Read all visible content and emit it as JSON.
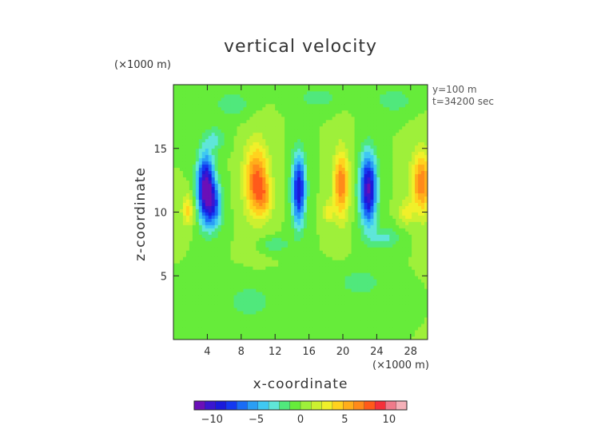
{
  "chart_data": {
    "type": "heatmap",
    "title": "vertical velocity",
    "xlabel": "x-coordinate",
    "ylabel": "z-coordinate",
    "x_unit": "(×1000 m)",
    "y_unit": "(×1000 m)",
    "annotations": [
      "y=100 m",
      "t=34200 sec"
    ],
    "xlim": [
      0,
      30
    ],
    "ylim": [
      0,
      20
    ],
    "x_ticks": [
      4,
      8,
      12,
      16,
      20,
      24,
      28
    ],
    "x_tick_labels": [
      "4",
      "8",
      "12",
      "16",
      "20",
      "24",
      "28"
    ],
    "y_ticks": [
      5,
      10,
      15
    ],
    "y_tick_labels": [
      "5",
      "10",
      "15"
    ],
    "colorbar": {
      "min": -12,
      "max": 12,
      "ticks": [
        -10,
        -5,
        0,
        5,
        10
      ],
      "tick_labels": [
        "−10",
        "−5",
        "0",
        "5",
        "10"
      ],
      "colors": [
        "#6a0fb8",
        "#3a16d0",
        "#1a1adc",
        "#1438f0",
        "#1a6cf5",
        "#2a9ef5",
        "#3fc9f2",
        "#5fe6d9",
        "#50e87c",
        "#66ec3a",
        "#9ef03a",
        "#ccf030",
        "#f0f02a",
        "#ffd21e",
        "#ffae1a",
        "#ff8a1a",
        "#ff5a1a",
        "#f5303a",
        "#f07a8a",
        "#f5b0b8"
      ]
    },
    "cells": [
      {
        "x": 3.8,
        "z": 12.0,
        "sx": 1.0,
        "sz": 2.6,
        "v": -11.5
      },
      {
        "x": 4.8,
        "z": 10.5,
        "sx": 1.0,
        "sz": 1.8,
        "v": -6.0
      },
      {
        "x": 1.7,
        "z": 10.2,
        "sx": 0.7,
        "sz": 1.2,
        "v": 4.0
      },
      {
        "x": 9.8,
        "z": 12.5,
        "sx": 1.4,
        "sz": 2.8,
        "v": 7.5
      },
      {
        "x": 10.8,
        "z": 11.2,
        "sx": 1.0,
        "sz": 1.4,
        "v": 3.0
      },
      {
        "x": 14.8,
        "z": 11.8,
        "sx": 0.8,
        "sz": 2.8,
        "v": -9.5
      },
      {
        "x": 19.8,
        "z": 12.2,
        "sx": 0.9,
        "sz": 2.6,
        "v": 7.0
      },
      {
        "x": 18.3,
        "z": 10.0,
        "sx": 0.6,
        "sz": 0.8,
        "v": 3.5
      },
      {
        "x": 23.0,
        "z": 11.8,
        "sx": 1.0,
        "sz": 2.8,
        "v": -11.0
      },
      {
        "x": 29.3,
        "z": 12.3,
        "sx": 1.2,
        "sz": 2.4,
        "v": 7.0
      },
      {
        "x": 27.5,
        "z": 10.0,
        "sx": 0.8,
        "sz": 0.9,
        "v": 3.0
      },
      {
        "x": 12.0,
        "z": 7.5,
        "sx": 1.6,
        "sz": 0.5,
        "v": -2.5
      },
      {
        "x": 7.0,
        "z": 18.5,
        "sx": 2.0,
        "sz": 1.0,
        "v": -2.3
      },
      {
        "x": 17.0,
        "z": 19.0,
        "sx": 2.2,
        "sz": 0.8,
        "v": -2.2
      },
      {
        "x": 26.0,
        "z": 18.8,
        "sx": 2.0,
        "sz": 0.9,
        "v": -2.3
      },
      {
        "x": 22.0,
        "z": 4.5,
        "sx": 2.4,
        "sz": 1.0,
        "v": -2.2
      },
      {
        "x": 9.0,
        "z": 3.0,
        "sx": 2.4,
        "sz": 1.2,
        "v": -2.2
      },
      {
        "x": 5.0,
        "z": 15.8,
        "sx": 1.2,
        "sz": 0.9,
        "v": -2.5
      },
      {
        "x": 25.0,
        "z": 8.0,
        "sx": 1.8,
        "sz": 0.8,
        "v": -2.6
      }
    ]
  }
}
